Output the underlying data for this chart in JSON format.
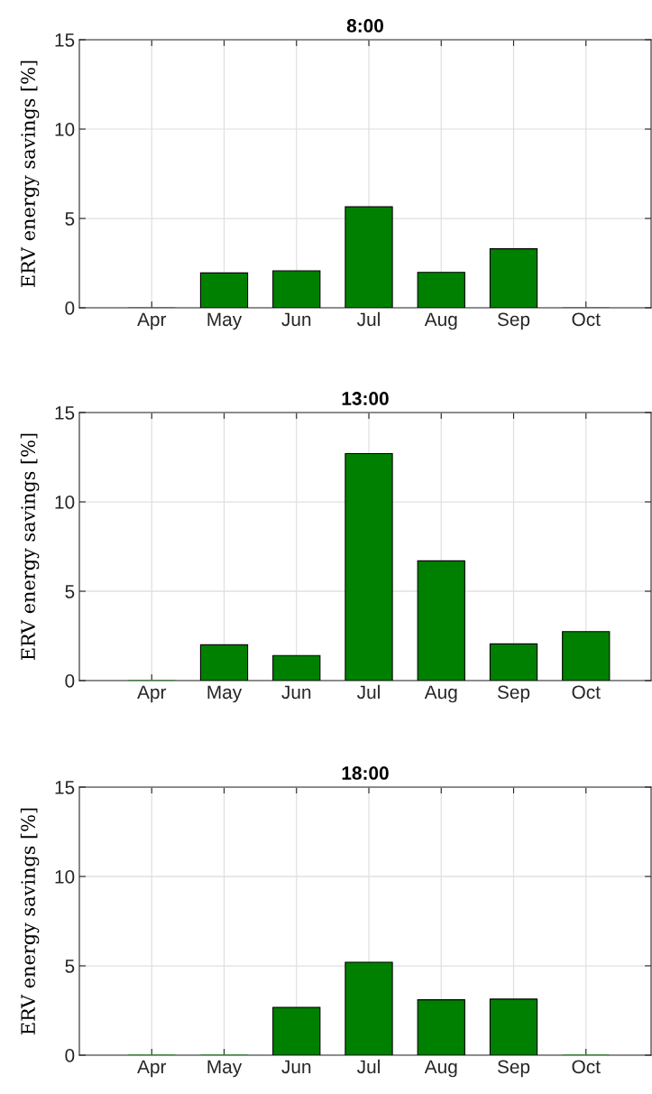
{
  "chart_data": [
    {
      "type": "bar",
      "title": "8:00",
      "ylabel": "ERV energy savings [%]",
      "categories": [
        "Apr",
        "May",
        "Jun",
        "Jul",
        "Aug",
        "Sep",
        "Oct"
      ],
      "color": "#008000",
      "values": [
        0,
        1.95,
        2.07,
        5.65,
        1.98,
        3.3,
        0
      ],
      "ylim": [
        0,
        15
      ],
      "yticks": [
        0,
        5,
        10,
        15
      ],
      "grid": true
    },
    {
      "type": "bar",
      "title": "13:00",
      "ylabel": "ERV energy savings [%]",
      "categories": [
        "Apr",
        "May",
        "Jun",
        "Jul",
        "Aug",
        "Sep",
        "Oct"
      ],
      "color": "#008000",
      "values": [
        0,
        2.0,
        1.4,
        12.7,
        6.7,
        2.05,
        2.74
      ],
      "ylim": [
        0,
        15
      ],
      "yticks": [
        0,
        5,
        10,
        15
      ],
      "grid": true
    },
    {
      "type": "bar",
      "title": "18:00",
      "ylabel": "ERV energy savings [%]",
      "categories": [
        "Apr",
        "May",
        "Jun",
        "Jul",
        "Aug",
        "Sep",
        "Oct"
      ],
      "color": "#008000",
      "values": [
        0,
        0,
        2.67,
        5.2,
        3.1,
        3.14,
        0
      ],
      "ylim": [
        0,
        15
      ],
      "yticks": [
        0,
        5,
        10,
        15
      ],
      "grid": true
    }
  ]
}
